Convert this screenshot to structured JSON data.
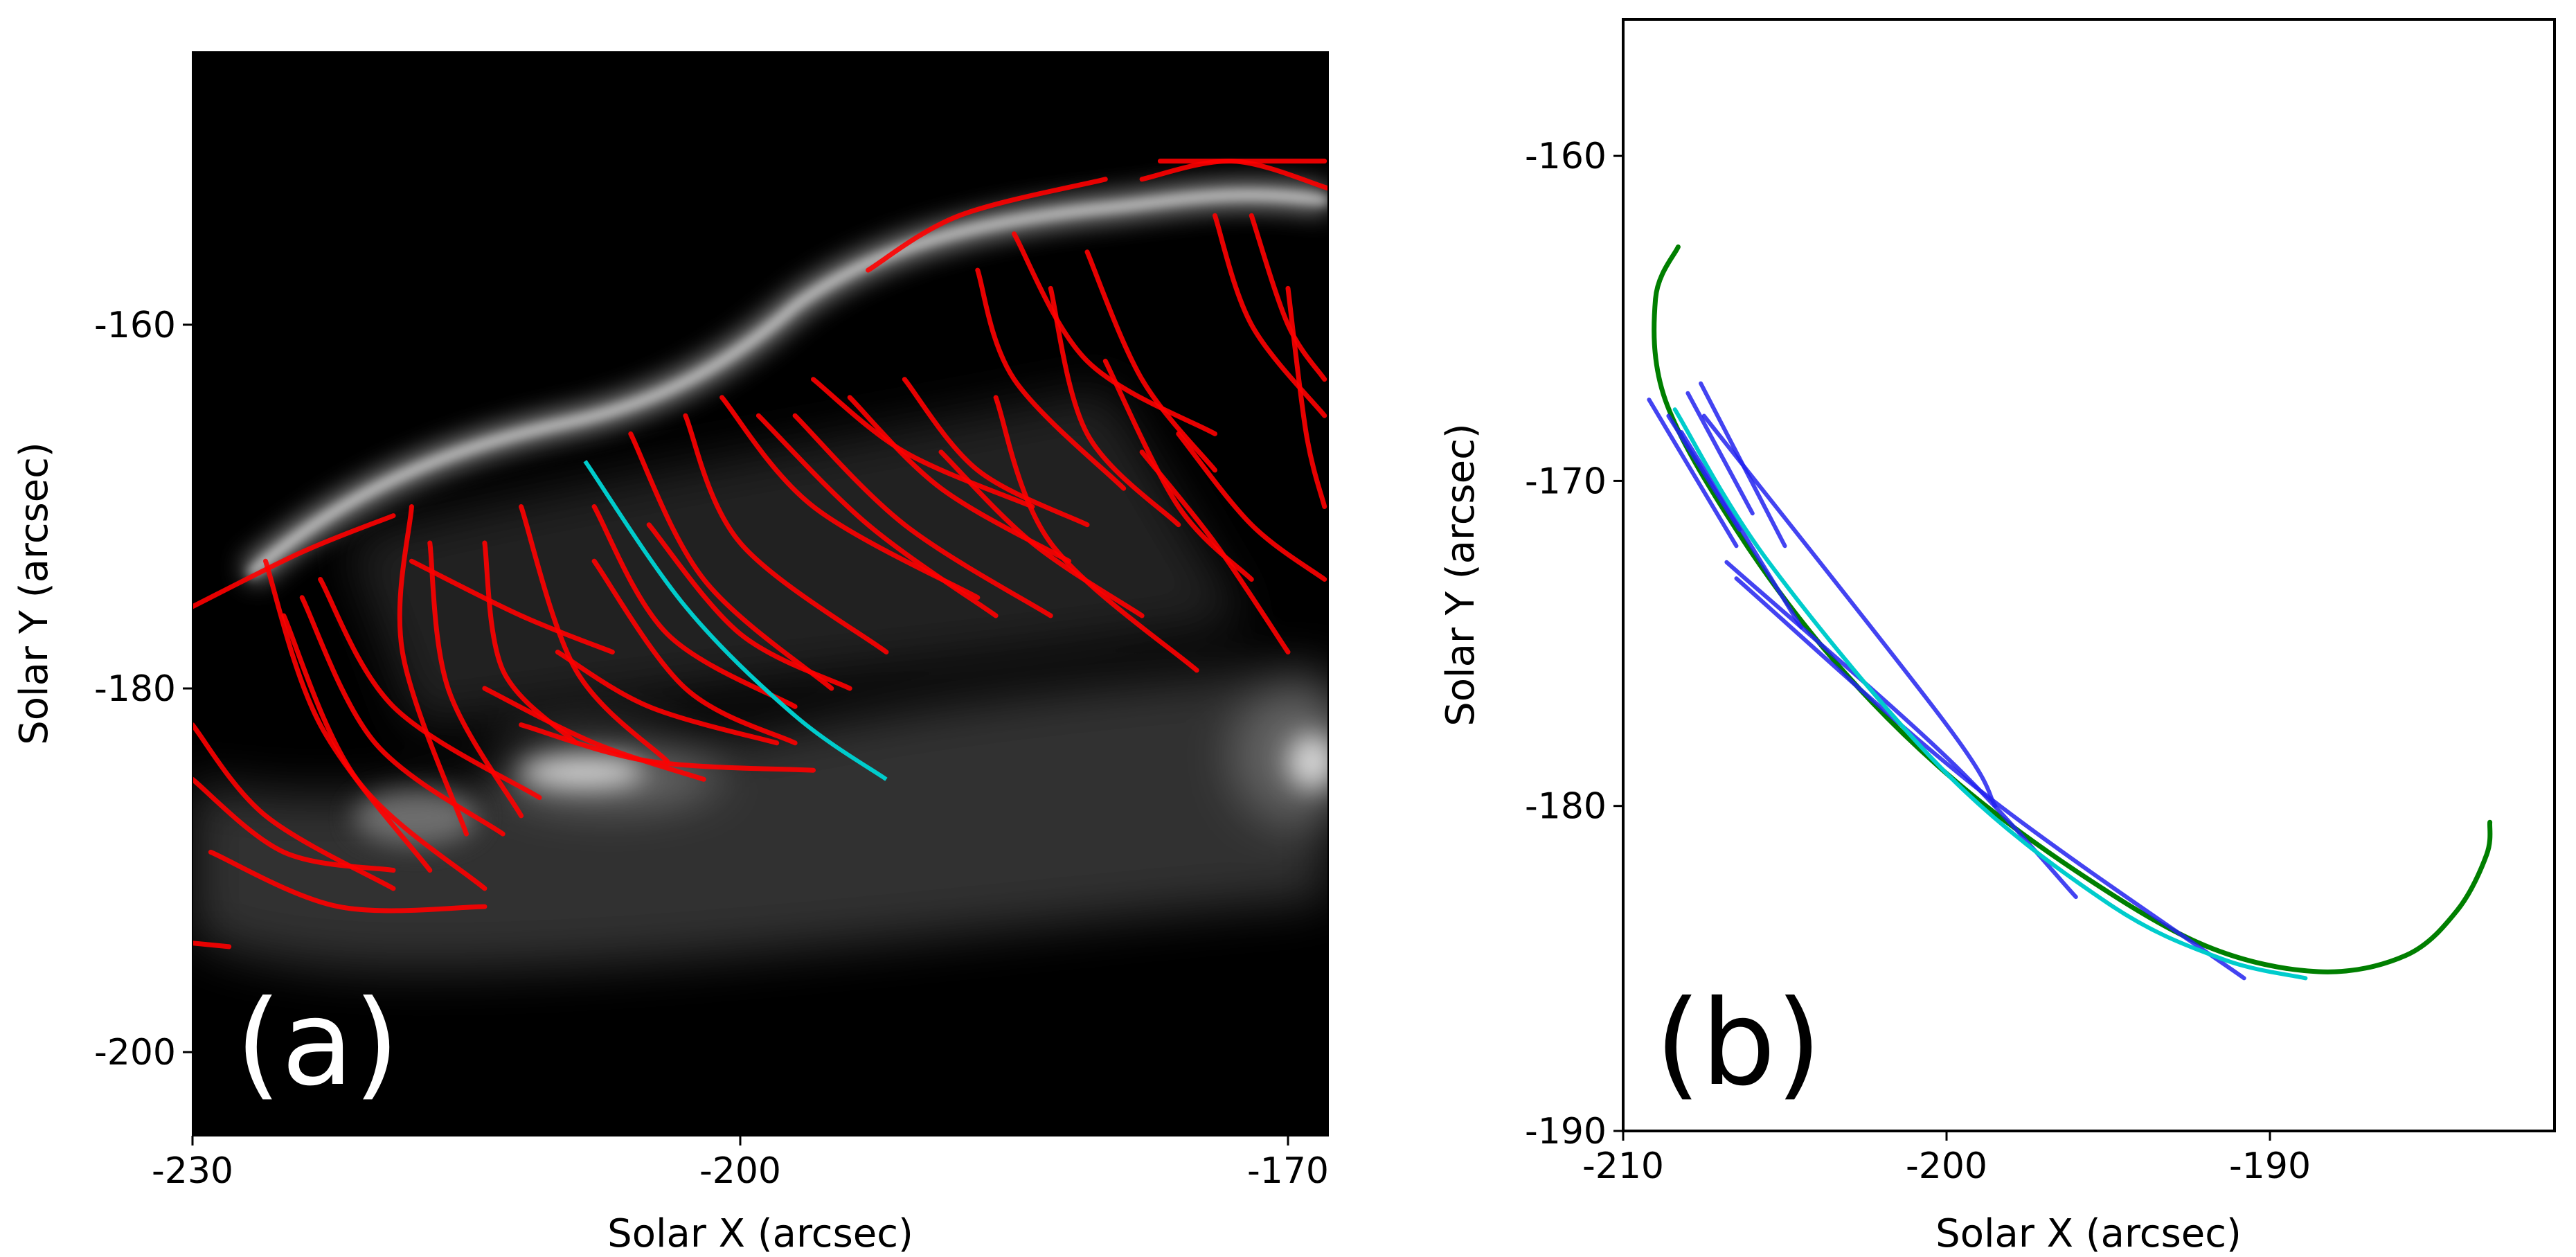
{
  "chart_data": [
    {
      "type": "image-overlay",
      "panel_label": "(a)",
      "xlabel": "Solar X (arcsec)",
      "ylabel": "Solar Y (arcsec)",
      "xlim": [
        -230,
        -167.8
      ],
      "ylim": [
        -204.6,
        -145
      ],
      "xticks": [
        -230,
        -200,
        -170
      ],
      "yticks": [
        -160,
        -180,
        -200
      ],
      "background": "grayscale EUV image",
      "colors": {
        "loops": "#ff0000",
        "highlight": "#00cccc"
      },
      "annotation_color": "#ffffff",
      "traced_loops": [
        [
          [
            -230,
            -175.5
          ],
          [
            -224,
            -172.5
          ],
          [
            -219,
            -170.5
          ]
        ],
        [
          [
            -226,
            -173
          ],
          [
            -223,
            -182
          ],
          [
            -217,
            -190
          ]
        ],
        [
          [
            -225,
            -176
          ],
          [
            -221,
            -185
          ],
          [
            -214,
            -191
          ]
        ],
        [
          [
            -224,
            -175
          ],
          [
            -220,
            -183
          ],
          [
            -213,
            -188
          ]
        ],
        [
          [
            -223,
            -174
          ],
          [
            -219,
            -181
          ],
          [
            -211,
            -186
          ]
        ],
        [
          [
            -230,
            -182
          ],
          [
            -226,
            -187
          ],
          [
            -219,
            -191
          ]
        ],
        [
          [
            -230,
            -185
          ],
          [
            -225,
            -189
          ],
          [
            -219,
            -190
          ]
        ],
        [
          [
            -229,
            -189
          ],
          [
            -222,
            -192
          ],
          [
            -214,
            -192
          ]
        ],
        [
          [
            -230,
            -194
          ],
          [
            -228,
            -194.2
          ]
        ],
        [
          [
            -218,
            -170
          ],
          [
            -218.5,
            -178
          ],
          [
            -215,
            -188
          ]
        ],
        [
          [
            -217,
            -172
          ],
          [
            -216,
            -180
          ],
          [
            -212,
            -187
          ]
        ],
        [
          [
            -214,
            -172
          ],
          [
            -213,
            -179
          ],
          [
            -209,
            -183
          ]
        ],
        [
          [
            -212,
            -170
          ],
          [
            -209,
            -179
          ],
          [
            -204,
            -184
          ]
        ],
        [
          [
            -212,
            -182
          ],
          [
            -205,
            -184
          ],
          [
            -196,
            -184.5
          ]
        ],
        [
          [
            -208,
            -170
          ],
          [
            -204,
            -177
          ],
          [
            -197,
            -181
          ]
        ],
        [
          [
            -208,
            -173
          ],
          [
            -203,
            -180
          ],
          [
            -197,
            -183
          ]
        ],
        [
          [
            -206,
            -166
          ],
          [
            -202,
            -174
          ],
          [
            -195,
            -180
          ]
        ],
        [
          [
            -205,
            -171
          ],
          [
            -200,
            -177
          ],
          [
            -194,
            -180
          ]
        ],
        [
          [
            -203,
            -165
          ],
          [
            -200,
            -172
          ],
          [
            -192,
            -178
          ]
        ],
        [
          [
            -201,
            -164
          ],
          [
            -196,
            -170
          ],
          [
            -187,
            -175
          ]
        ],
        [
          [
            -199,
            -165
          ],
          [
            -193,
            -171
          ],
          [
            -186,
            -176
          ]
        ],
        [
          [
            -197,
            -165
          ],
          [
            -191,
            -171
          ],
          [
            -183,
            -176
          ]
        ],
        [
          [
            -196,
            -163
          ],
          [
            -191,
            -167
          ],
          [
            -184,
            -170
          ]
        ],
        [
          [
            -194,
            -164
          ],
          [
            -189,
            -169
          ],
          [
            -182,
            -173
          ]
        ],
        [
          [
            -191,
            -163
          ],
          [
            -187,
            -168
          ],
          [
            -181,
            -171
          ]
        ],
        [
          [
            -189,
            -167
          ],
          [
            -184,
            -172
          ],
          [
            -178,
            -176
          ]
        ],
        [
          [
            -186,
            -164
          ],
          [
            -183,
            -172
          ],
          [
            -175,
            -179
          ]
        ],
        [
          [
            -183,
            -158
          ],
          [
            -181,
            -166
          ],
          [
            -176,
            -171
          ]
        ],
        [
          [
            -181,
            -156
          ],
          [
            -178,
            -163
          ],
          [
            -174,
            -168
          ]
        ],
        [
          [
            -180,
            -162
          ],
          [
            -176,
            -170
          ],
          [
            -172,
            -174
          ]
        ],
        [
          [
            -178,
            -167
          ],
          [
            -174,
            -172
          ],
          [
            -170,
            -178
          ]
        ],
        [
          [
            -176,
            -166
          ],
          [
            -172,
            -171
          ],
          [
            -168,
            -174
          ]
        ],
        [
          [
            -174,
            -154
          ],
          [
            -172,
            -160
          ],
          [
            -168,
            -165
          ]
        ],
        [
          [
            -172,
            -154
          ],
          [
            -170,
            -160
          ],
          [
            -168,
            -163
          ]
        ],
        [
          [
            -170,
            -158
          ],
          [
            -169,
            -166
          ],
          [
            -168,
            -170
          ]
        ],
        [
          [
            -185,
            -155
          ],
          [
            -181,
            -162
          ],
          [
            -174,
            -166
          ]
        ],
        [
          [
            -187,
            -157
          ],
          [
            -185,
            -163
          ],
          [
            -179,
            -169
          ]
        ],
        [
          [
            -193,
            -157
          ],
          [
            -188,
            -154
          ],
          [
            -180,
            -152
          ]
        ],
        [
          [
            -177,
            -151
          ],
          [
            -172,
            -151
          ],
          [
            -168,
            -151
          ]
        ],
        [
          [
            -178,
            -152
          ],
          [
            -173,
            -151
          ],
          [
            -167.8,
            -152.5
          ]
        ],
        [
          [
            -210,
            -178
          ],
          [
            -205,
            -181
          ],
          [
            -198,
            -183
          ]
        ],
        [
          [
            -214,
            -180
          ],
          [
            -208,
            -183
          ],
          [
            -202,
            -185
          ]
        ],
        [
          [
            -218,
            -173
          ],
          [
            -212,
            -176
          ],
          [
            -207,
            -178
          ]
        ]
      ],
      "highlight_loop": [
        [
          -208.5,
          -167.5
        ],
        [
          -203,
          -175.5
        ],
        [
          -197,
          -181.5
        ],
        [
          -192,
          -185
        ]
      ]
    },
    {
      "type": "line",
      "panel_label": "(b)",
      "xlabel": "Solar X (arcsec)",
      "ylabel": "Solar Y (arcsec)",
      "xlim": [
        -210,
        -181.2
      ],
      "ylim": [
        -190,
        -155.8
      ],
      "xticks": [
        -210,
        -200,
        -190
      ],
      "yticks": [
        -160,
        -170,
        -180,
        -190
      ],
      "colors": {
        "fit": "#007f00",
        "traces": "#2222ee",
        "mean": "#00cccc"
      },
      "series": [
        {
          "color_key": "fit",
          "points": [
            [
              -208.3,
              -162.8
            ],
            [
              -209.0,
              -164.4
            ],
            [
              -208.7,
              -167.5
            ],
            [
              -206.5,
              -171.5
            ],
            [
              -203.5,
              -175.5
            ],
            [
              -200,
              -179
            ],
            [
              -196,
              -182
            ],
            [
              -192,
              -184.3
            ],
            [
              -188.5,
              -185.1
            ],
            [
              -185.8,
              -184.6
            ],
            [
              -184.2,
              -183.2
            ],
            [
              -183.3,
              -181.5
            ],
            [
              -183.2,
              -180.5
            ]
          ]
        },
        {
          "color_key": "traces",
          "points": [
            [
              -209.2,
              -167.5
            ],
            [
              -206.5,
              -172.0
            ]
          ]
        },
        {
          "color_key": "traces",
          "points": [
            [
              -208.6,
              -168.0
            ],
            [
              -206.4,
              -171.5
            ]
          ]
        },
        {
          "color_key": "traces",
          "points": [
            [
              -208.0,
              -167.3
            ],
            [
              -206.0,
              -171.0
            ]
          ]
        },
        {
          "color_key": "traces",
          "points": [
            [
              -207.6,
              -167.0
            ],
            [
              -205.0,
              -172.0
            ]
          ]
        },
        {
          "color_key": "traces",
          "points": [
            [
              -208.2,
              -168.5
            ],
            [
              -204.5,
              -174.5
            ]
          ]
        },
        {
          "color_key": "traces",
          "points": [
            [
              -207.5,
              -168.0
            ],
            [
              -200,
              -177.5
            ],
            [
              -198.5,
              -180.0
            ]
          ]
        },
        {
          "color_key": "traces",
          "points": [
            [
              -206.8,
              -172.5
            ],
            [
              -200,
              -178.5
            ],
            [
              -196,
              -182.8
            ]
          ]
        },
        {
          "color_key": "traces",
          "points": [
            [
              -206.5,
              -173.0
            ],
            [
              -199,
              -179.5
            ],
            [
              -190.8,
              -185.3
            ]
          ]
        },
        {
          "color_key": "mean",
          "points": [
            [
              -208.4,
              -167.8
            ],
            [
              -205.5,
              -172.5
            ],
            [
              -200,
              -179
            ],
            [
              -195,
              -183
            ],
            [
              -191.5,
              -184.7
            ],
            [
              -188.9,
              -185.3
            ]
          ]
        }
      ]
    }
  ]
}
